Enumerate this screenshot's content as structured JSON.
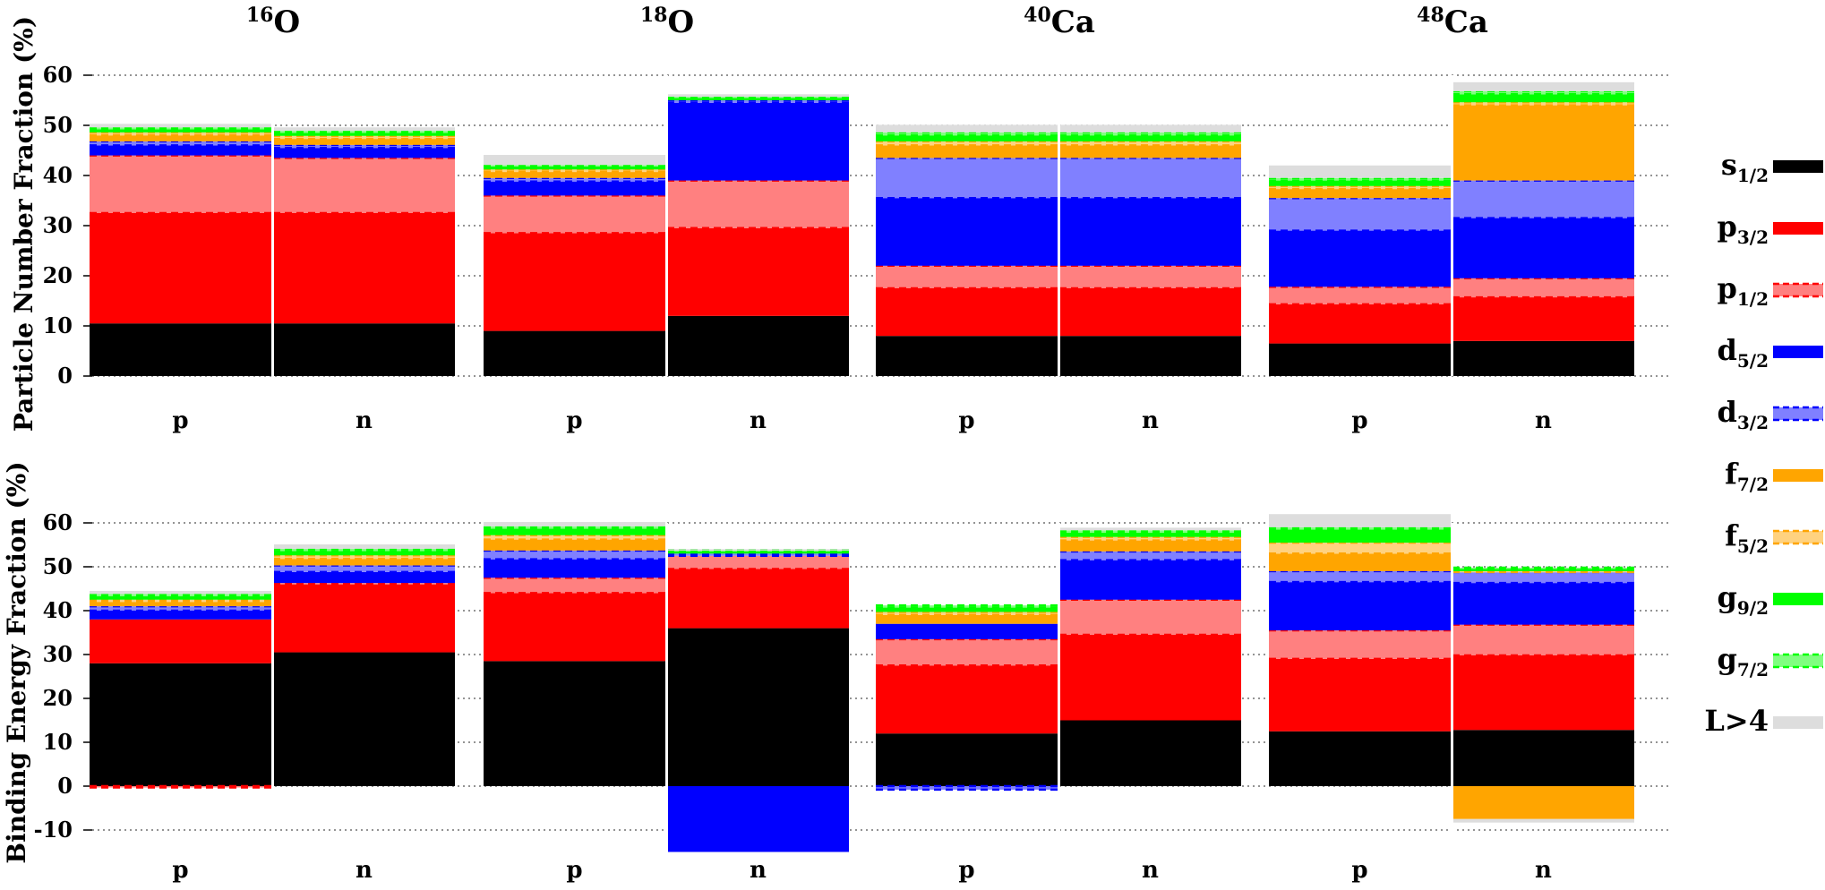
{
  "nuclei": [
    "16O",
    "18O",
    "40Ca",
    "48Ca"
  ],
  "nucleus_titles": [
    {
      "mass": "16",
      "symbol": "O"
    },
    {
      "mass": "18",
      "symbol": "O"
    },
    {
      "mass": "40",
      "symbol": "Ca"
    },
    {
      "mass": "48",
      "symbol": "Ca"
    }
  ],
  "legend": [
    {
      "key": "s1/2",
      "letter": "s",
      "sub": "1/2",
      "color": "#000000",
      "dashed": false
    },
    {
      "key": "p3/2",
      "letter": "p",
      "sub": "3/2",
      "color": "#ff0000",
      "dashed": false
    },
    {
      "key": "p1/2",
      "letter": "p",
      "sub": "1/2",
      "color": "#ff8080",
      "edge": "#ff0000",
      "dashed": true
    },
    {
      "key": "d5/2",
      "letter": "d",
      "sub": "5/2",
      "color": "#0000ff",
      "dashed": false
    },
    {
      "key": "d3/2",
      "letter": "d",
      "sub": "3/2",
      "color": "#8080ff",
      "edge": "#0000ff",
      "dashed": true
    },
    {
      "key": "f7/2",
      "letter": "f",
      "sub": "7/2",
      "color": "#ffa500",
      "dashed": false
    },
    {
      "key": "f5/2",
      "letter": "f",
      "sub": "5/2",
      "color": "#ffd280",
      "edge": "#ffa500",
      "dashed": true
    },
    {
      "key": "g9/2",
      "letter": "g",
      "sub": "9/2",
      "color": "#00ff00",
      "dashed": false
    },
    {
      "key": "g7/2",
      "letter": "g",
      "sub": "7/2",
      "color": "#80ff80",
      "edge": "#00ff00",
      "dashed": true
    },
    {
      "key": "L>4",
      "letter": "L>4",
      "sub": "",
      "color": "#dddddd",
      "dashed": false
    }
  ],
  "chart_data": [
    {
      "type": "bar",
      "stacked": true,
      "ylabel": "Particle Number Fraction (%)",
      "ylim": [
        0,
        60
      ],
      "yticks": [
        0,
        10,
        20,
        30,
        40,
        50,
        60
      ],
      "categories": [
        "p",
        "n",
        "p",
        "n",
        "p",
        "n",
        "p",
        "n"
      ],
      "groups": [
        "16O",
        "16O",
        "18O",
        "18O",
        "40Ca",
        "40Ca",
        "48Ca",
        "48Ca"
      ],
      "series": [
        {
          "name": "s1/2",
          "values": [
            10.5,
            10.5,
            9.0,
            12.0,
            8.0,
            8.0,
            6.5,
            7.0
          ]
        },
        {
          "name": "p3/2",
          "values": [
            22.0,
            22.0,
            19.5,
            17.5,
            9.5,
            9.5,
            7.8,
            8.7
          ]
        },
        {
          "name": "p1/2",
          "values": [
            11.5,
            11.0,
            7.5,
            9.5,
            4.5,
            4.5,
            3.5,
            3.8
          ]
        },
        {
          "name": "d5/2",
          "values": [
            2.0,
            2.0,
            2.8,
            15.5,
            13.5,
            13.5,
            11.2,
            12.0
          ]
        },
        {
          "name": "d3/2",
          "values": [
            0.8,
            0.6,
            0.7,
            0.5,
            8.0,
            8.0,
            6.5,
            7.5
          ]
        },
        {
          "name": "f7/2",
          "values": [
            1.2,
            1.2,
            1.2,
            0.0,
            2.5,
            2.5,
            1.8,
            15.0
          ]
        },
        {
          "name": "f5/2",
          "values": [
            0.6,
            0.6,
            0.5,
            0.0,
            0.8,
            0.8,
            0.6,
            0.6
          ]
        },
        {
          "name": "g9/2",
          "values": [
            0.6,
            0.6,
            0.6,
            0.5,
            1.2,
            1.2,
            1.1,
            1.6
          ]
        },
        {
          "name": "g7/2",
          "values": [
            0.4,
            0.4,
            0.3,
            0.2,
            0.6,
            0.6,
            0.5,
            0.6
          ]
        },
        {
          "name": "L>4",
          "values": [
            0.7,
            0.7,
            2.0,
            0.5,
            1.5,
            1.5,
            2.5,
            1.8
          ]
        }
      ]
    },
    {
      "type": "bar",
      "stacked": true,
      "ylabel": "Binding Energy Fraction (%)",
      "ylim": [
        -15,
        60
      ],
      "yticks": [
        -10,
        0,
        10,
        20,
        30,
        40,
        50,
        60
      ],
      "categories": [
        "p",
        "n",
        "p",
        "n",
        "p",
        "n",
        "p",
        "n"
      ],
      "groups": [
        "16O",
        "16O",
        "18O",
        "18O",
        "40Ca",
        "40Ca",
        "48Ca",
        "48Ca"
      ],
      "series": [
        {
          "name": "s1/2",
          "values": [
            28.0,
            30.5,
            28.5,
            36.0,
            12.0,
            15.0,
            12.5,
            12.8
          ]
        },
        {
          "name": "p3/2",
          "values": [
            10.0,
            15.5,
            15.5,
            13.5,
            15.5,
            19.5,
            16.5,
            17.0
          ]
        },
        {
          "name": "p1/2",
          "values": [
            -0.3,
            0.3,
            3.5,
            3.0,
            6.0,
            8.0,
            6.5,
            7.0
          ]
        },
        {
          "name": "d5/2",
          "values": [
            2.0,
            2.5,
            4.2,
            -15.0,
            3.5,
            9.0,
            11.0,
            9.5
          ]
        },
        {
          "name": "d3/2",
          "values": [
            1.0,
            1.5,
            2.0,
            0.5,
            -0.8,
            2.0,
            2.5,
            2.5
          ]
        },
        {
          "name": "f7/2",
          "values": [
            1.0,
            1.5,
            2.5,
            0.0,
            2.0,
            2.5,
            4.0,
            -7.5
          ]
        },
        {
          "name": "f5/2",
          "values": [
            0.5,
            0.8,
            1.0,
            0.0,
            0.7,
            0.8,
            2.5,
            0.2
          ]
        },
        {
          "name": "g9/2",
          "values": [
            0.8,
            1.0,
            1.5,
            0.5,
            1.0,
            1.0,
            3.0,
            0.5
          ]
        },
        {
          "name": "g7/2",
          "values": [
            0.5,
            0.5,
            0.5,
            0.3,
            0.5,
            0.5,
            0.5,
            0.3
          ]
        },
        {
          "name": "L>4",
          "values": [
            0.7,
            1.0,
            1.0,
            0.2,
            0.0,
            0.6,
            3.0,
            -0.8
          ]
        }
      ]
    }
  ]
}
